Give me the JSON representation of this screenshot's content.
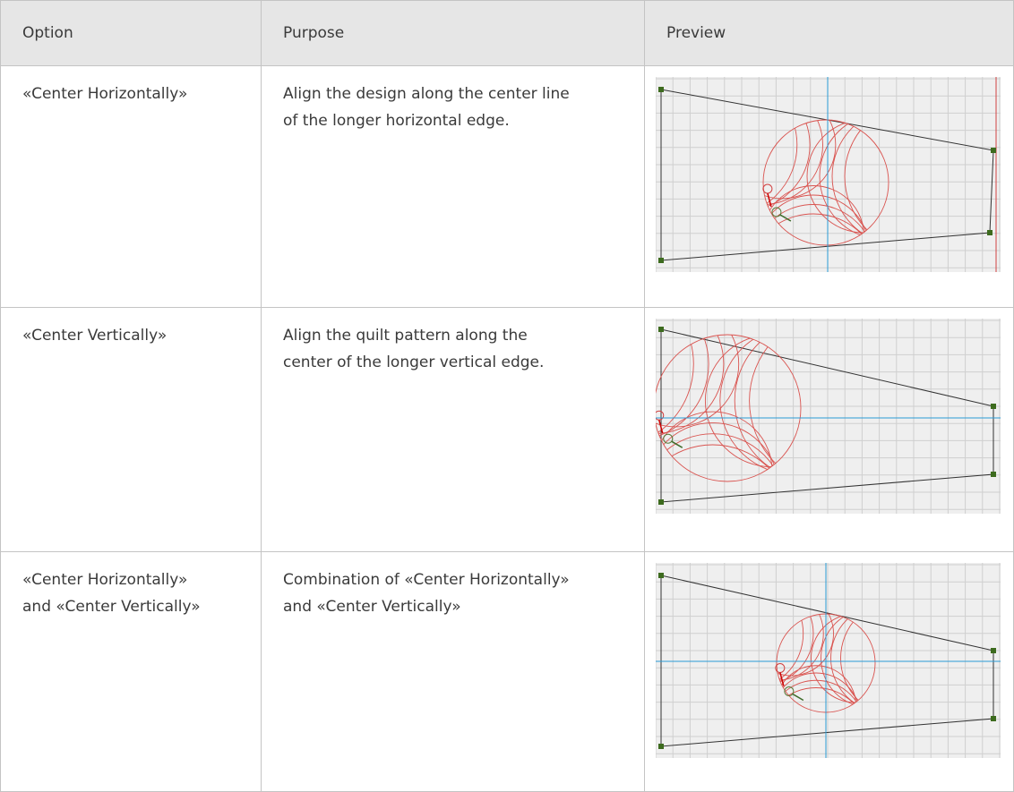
{
  "table": {
    "header": [
      "Option",
      "Purpose",
      "Preview"
    ],
    "rows": [
      {
        "option": [
          "«Center Horizontally»"
        ],
        "purpose": [
          "Align the design along the center line",
          "of the longer horizontal edge."
        ]
      },
      {
        "option": [
          "«Center Vertically»"
        ],
        "purpose": [
          "Align the quilt pattern along the",
          "center of the longer vertical edge."
        ]
      },
      {
        "option": [
          "«Center Horizontally»",
          "and «Center Vertically»"
        ],
        "purpose": [
          "Combination of «Center Horizontally»",
          "and «Center Vertically»"
        ]
      }
    ]
  }
}
